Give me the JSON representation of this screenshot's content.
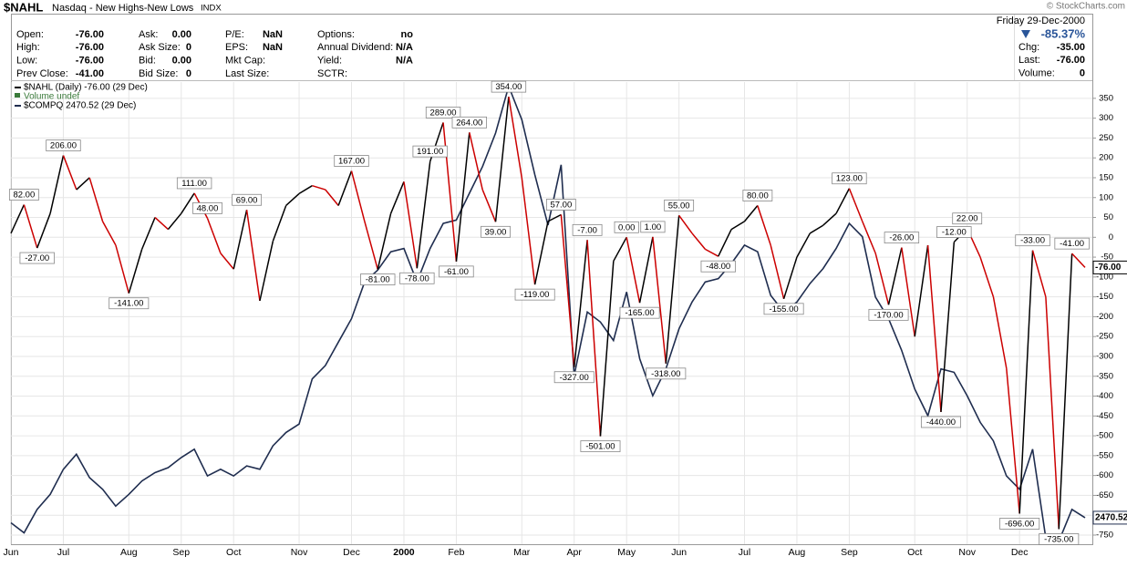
{
  "header": {
    "symbol": "$NAHL",
    "name": "Nasdaq - New Highs-New Lows",
    "exchange": "INDX",
    "copyright": "© StockCharts.com",
    "date": "Friday 29-Dec-2000",
    "change_pct": "-85.37%",
    "fields": [
      {
        "label": "Open:",
        "value": "-76.00"
      },
      {
        "label": "High:",
        "value": "-76.00"
      },
      {
        "label": "Low:",
        "value": "-76.00"
      },
      {
        "label": "Prev Close:",
        "value": "-41.00"
      },
      {
        "label": "Ask:",
        "value": "0.00"
      },
      {
        "label": "Ask Size:",
        "value": "0"
      },
      {
        "label": "Bid:",
        "value": "0.00"
      },
      {
        "label": "Bid Size:",
        "value": "0"
      },
      {
        "label": "P/E:",
        "value": "NaN"
      },
      {
        "label": "EPS:",
        "value": "NaN"
      },
      {
        "label": "Mkt Cap:"
      },
      {
        "label": "Last Size:"
      },
      {
        "label": "Options:",
        "value": "no"
      },
      {
        "label": "Annual Dividend:",
        "value": "N/A"
      },
      {
        "label": "Yield:",
        "value": "N/A"
      },
      {
        "label": "SCTR:"
      }
    ],
    "quote": [
      {
        "label": "Chg:",
        "value": "-35.00"
      },
      {
        "label": "Last:",
        "value": "-76.00"
      },
      {
        "label": "Volume:",
        "value": "0"
      }
    ]
  },
  "chart_data": {
    "type": "line",
    "legend_note": "Volume undef",
    "categories": [
      "Jun",
      null,
      null,
      null,
      "Jul",
      null,
      null,
      null,
      null,
      "Aug",
      null,
      null,
      null,
      "Sep",
      null,
      null,
      null,
      "Oct",
      null,
      null,
      null,
      null,
      "Nov",
      null,
      null,
      null,
      "Dec",
      null,
      null,
      null,
      "2000",
      null,
      null,
      null,
      "Feb",
      null,
      null,
      null,
      null,
      "Mar",
      null,
      null,
      null,
      "Apr",
      null,
      null,
      null,
      "May",
      null,
      null,
      null,
      "Jun",
      null,
      null,
      null,
      null,
      "Jul",
      null,
      null,
      null,
      "Aug",
      null,
      null,
      null,
      "Sep",
      null,
      null,
      null,
      null,
      "Oct",
      null,
      null,
      null,
      "Nov",
      null,
      null,
      null,
      "Dec",
      null,
      null,
      null,
      null,
      null
    ],
    "ylim": [
      -773,
      391
    ],
    "yticks": [
      350,
      300,
      250,
      200,
      150,
      100,
      50,
      0,
      -50,
      -100,
      -150,
      -200,
      -250,
      -300,
      -350,
      -400,
      -450,
      -500,
      -550,
      -600,
      -650,
      -700,
      -750
    ],
    "y2lim": [
      2312,
      5075
    ],
    "grid": true,
    "series": [
      {
        "name": "$NAHL (Daily) -76.00 (29 Dec)",
        "up_color": "#000000",
        "down_color": "#cc0000",
        "values": [
          10,
          82,
          -27,
          60,
          206,
          120,
          150,
          40,
          -20,
          -141,
          -30,
          50,
          20,
          60,
          111,
          48,
          -40,
          -80,
          69,
          -160,
          -10,
          80,
          110,
          130,
          120,
          80,
          167,
          40,
          -81,
          60,
          140,
          -78,
          191,
          289,
          -61,
          264,
          120,
          39,
          354,
          150,
          -119,
          40,
          57,
          -327,
          -7,
          -501,
          -60,
          0,
          -165,
          1,
          -318,
          55,
          10,
          -30,
          -48,
          20,
          40,
          80,
          -20,
          -155,
          -50,
          10,
          30,
          60,
          123,
          40,
          -40,
          -170,
          -26,
          -250,
          -20,
          -440,
          -12,
          22,
          -50,
          -150,
          -330,
          -696,
          -33,
          -150,
          -735,
          -41,
          -76
        ],
        "value_labels": [
          null,
          "82.00",
          "-27.00",
          null,
          "206.00",
          null,
          null,
          null,
          null,
          "-141.00",
          null,
          null,
          null,
          null,
          "111.00",
          "48.00",
          null,
          null,
          "69.00",
          null,
          null,
          null,
          null,
          null,
          null,
          null,
          "167.00",
          null,
          "-81.00",
          null,
          null,
          "-78.00",
          "191.00",
          "289.00",
          "-61.00",
          "264.00",
          null,
          "39.00",
          "354.00",
          null,
          "-119.00",
          null,
          "57.00",
          "-327.00",
          "-7.00",
          "-501.00",
          null,
          "0.00",
          "-165.00",
          "1.00",
          "-318.00",
          "55.00",
          null,
          null,
          "-48.00",
          null,
          null,
          "80.00",
          null,
          "-155.00",
          null,
          null,
          null,
          null,
          "123.00",
          null,
          null,
          "-170.00",
          "-26.00",
          null,
          null,
          "-440.00",
          "-12.00",
          "22.00",
          null,
          null,
          null,
          "-696.00",
          "-33.00",
          null,
          "-735.00",
          "-41.00",
          "-76.00"
        ]
      },
      {
        "name": "$COMPQ 2470.52 (29 Dec)",
        "color": "#1f2d4f",
        "axis": "y2",
        "values": [
          2440,
          2380,
          2520,
          2610,
          2760,
          2850,
          2710,
          2640,
          2540,
          2610,
          2690,
          2740,
          2770,
          2830,
          2880,
          2720,
          2760,
          2720,
          2780,
          2760,
          2900,
          2980,
          3030,
          3300,
          3380,
          3520,
          3660,
          3880,
          3950,
          4060,
          4080,
          3880,
          4080,
          4230,
          4250,
          4410,
          4570,
          4770,
          5050,
          4850,
          4520,
          4220,
          4580,
          3320,
          3700,
          3640,
          3530,
          3820,
          3420,
          3200,
          3360,
          3600,
          3760,
          3880,
          3900,
          3990,
          4100,
          4060,
          3800,
          3700,
          3760,
          3870,
          3960,
          4080,
          4230,
          4150,
          3790,
          3660,
          3470,
          3240,
          3080,
          3360,
          3340,
          3200,
          3040,
          2930,
          2720,
          2640,
          2880,
          2350,
          2330,
          2520,
          2470.52
        ],
        "value_labels": [
          null,
          null,
          null,
          null,
          null,
          null,
          null,
          null,
          null,
          null,
          null,
          null,
          null,
          null,
          null,
          null,
          null,
          null,
          null,
          null,
          null,
          null,
          null,
          null,
          null,
          null,
          null,
          null,
          null,
          null,
          null,
          null,
          null,
          null,
          null,
          null,
          null,
          null,
          null,
          null,
          null,
          null,
          null,
          null,
          null,
          null,
          null,
          null,
          null,
          null,
          null,
          null,
          null,
          null,
          null,
          null,
          null,
          null,
          null,
          null,
          null,
          null,
          null,
          null,
          null,
          null,
          null,
          null,
          null,
          null,
          null,
          null,
          null,
          null,
          null,
          null,
          null,
          null,
          null,
          null,
          null,
          null,
          "2470.52"
        ]
      }
    ]
  }
}
